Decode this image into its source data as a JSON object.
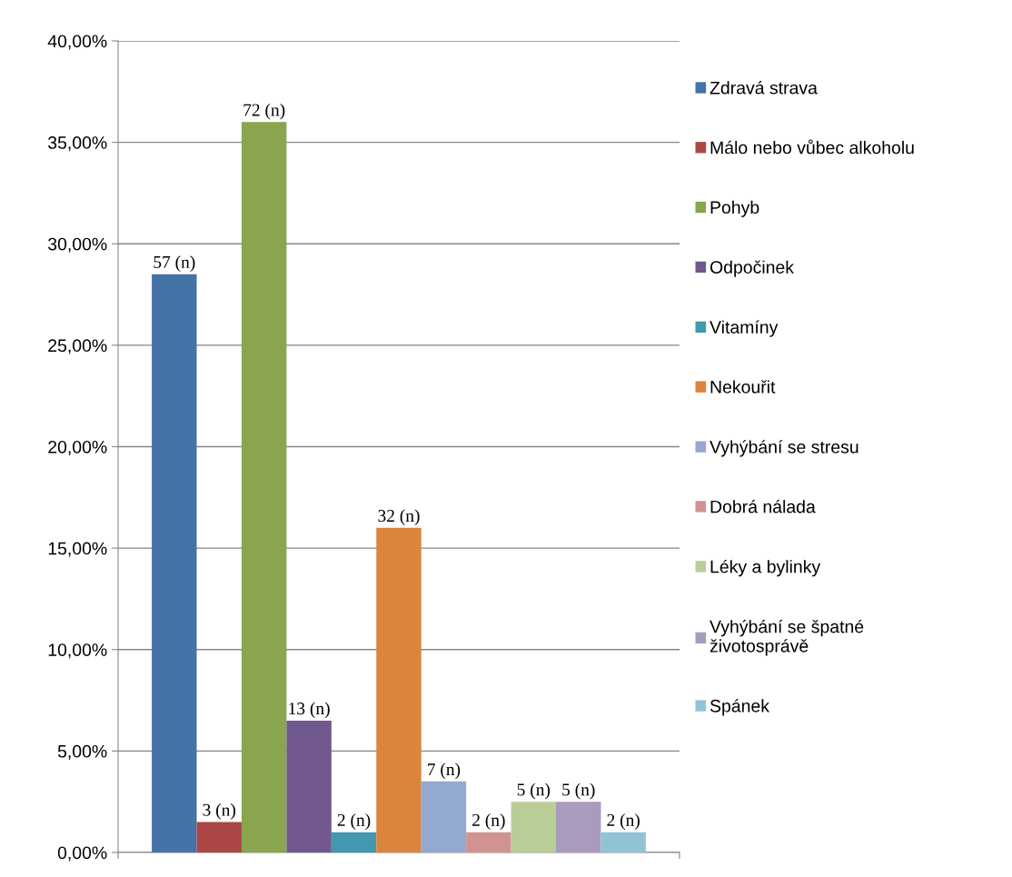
{
  "chart_data": {
    "type": "bar",
    "categories": [
      null
    ],
    "series": [
      {
        "name": "Zdravá strava",
        "color": "#4572a7",
        "values": [
          28.5
        ]
      },
      {
        "name": "Málo nebo vůbec alkoholu",
        "color": "#aa4643",
        "values": [
          1.5
        ]
      },
      {
        "name": "Pohyb",
        "color": "#89a54e",
        "values": [
          36
        ]
      },
      {
        "name": "Odpočinek",
        "color": "#71588f",
        "values": [
          6.5
        ]
      },
      {
        "name": "Vitamíny",
        "color": "#4198af",
        "values": [
          1
        ]
      },
      {
        "name": "Nekouřit",
        "color": "#db843d",
        "values": [
          16
        ]
      },
      {
        "name": "Vyhýbání se stresu",
        "color": "#93a9cf",
        "values": [
          3.5
        ]
      },
      {
        "name": "Dobrá nálada",
        "color": "#d19392",
        "values": [
          1
        ]
      },
      {
        "name": "Léky a bylinky",
        "color": "#b9cd96",
        "values": [
          2.5
        ]
      },
      {
        "name": "Vyhýbání se špatné\nživotosprávě",
        "color": "#a99bbd",
        "values": [
          2.5
        ]
      },
      {
        "name": "Spánek",
        "color": "#92c3d4",
        "values": [
          1
        ]
      }
    ],
    "annotations": [
      {
        "text": "57 (n)",
        "y": 28.5
      },
      {
        "text": "3 (n)",
        "y": 1.5
      },
      {
        "text": "72 (n)",
        "y": 36
      },
      {
        "text": "13 (n)",
        "y": 6.5
      },
      {
        "text": "2 (n)",
        "y": 1
      },
      {
        "text": "32 (n)",
        "y": 16
      },
      {
        "text": "7 (n)",
        "y": 3.5
      },
      {
        "text": "2 (n)",
        "y": 1
      },
      {
        "text": "5 (n)",
        "y": 2.5
      },
      {
        "text": "5 (n)",
        "y": 2.5
      },
      {
        "text": "2 (n)",
        "y": 1
      }
    ],
    "ylim": [
      0,
      40
    ],
    "yticks": [
      {
        "value": 0,
        "label": "0,00%"
      },
      {
        "value": 5,
        "label": "5,00%"
      },
      {
        "value": 10,
        "label": "10,00%"
      },
      {
        "value": 15,
        "label": "15,00%"
      },
      {
        "value": 20,
        "label": "20,00%"
      },
      {
        "value": 25,
        "label": "25,00%"
      },
      {
        "value": 30,
        "label": "30,00%"
      },
      {
        "value": 35,
        "label": "35,00%"
      },
      {
        "value": 40,
        "label": "40,00%"
      }
    ],
    "grid": "y",
    "legend": "right"
  }
}
